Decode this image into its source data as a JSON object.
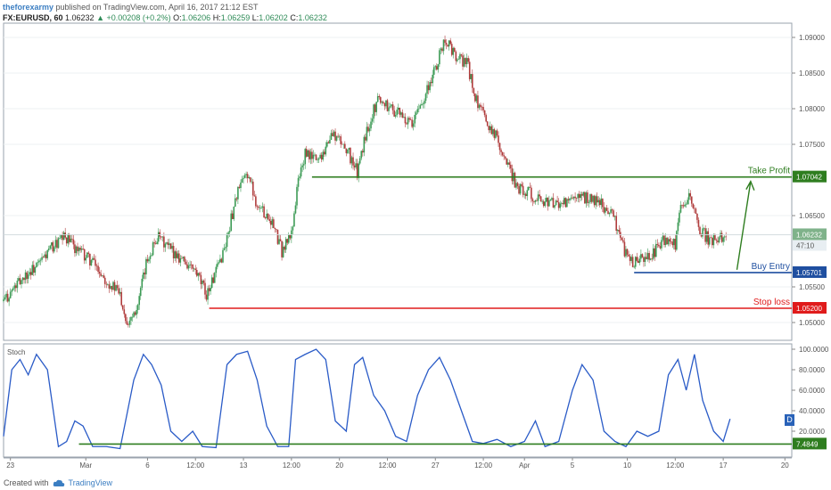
{
  "header": {
    "author": "theforexarmy",
    "published": "published on TradingView.com, April 16, 2017 21:12 EST",
    "symbol": "FX:EURUSD, 60",
    "last": "1.06232",
    "change": "+0.00208 (+0.2%)",
    "o_label": "O:",
    "o_value": "1.06206",
    "h_label": "H:",
    "h_value": "1.06259",
    "l_label": "L:",
    "l_value": "1.06202",
    "c_label": "C:",
    "c_value": "1.06232"
  },
  "footer": {
    "created_with": "Created with",
    "brand": "TradingView"
  },
  "colors": {
    "take_profit": "#2e7d1f",
    "buy_entry": "#1f4fa0",
    "stop_loss": "#e01b1b",
    "stoch_line": "#2a5bc7",
    "stoch_support": "#2e7d1f",
    "price_tag": "#7fb28a",
    "candle_up": "#3d9b56",
    "candle_down": "#b03d3d"
  },
  "chart_data": [
    {
      "type": "candlestick",
      "symbol": "FX:EURUSD",
      "interval": "60",
      "ylim": [
        1.0475,
        1.092
      ],
      "y_ticks": [
        "1.09000",
        "1.08500",
        "1.08000",
        "1.07500",
        "1.06500",
        "1.05500",
        "1.05000"
      ],
      "x_tick_labels": [
        "23",
        "Mar",
        "6",
        "12:00",
        "13",
        "12:00",
        "20",
        "12:00",
        "27",
        "12:00",
        "Apr",
        "5",
        "10",
        "12:00",
        "17",
        "20"
      ],
      "x_tick_positions": [
        0.5,
        6,
        10.5,
        14,
        17.5,
        21,
        24.5,
        28,
        31.5,
        35,
        38,
        41.5,
        45.5,
        49,
        52.5,
        57
      ],
      "xlim": [
        0,
        57.5
      ],
      "path": [
        [
          0,
          1.053
        ],
        [
          1.5,
          1.0565
        ],
        [
          2.5,
          1.058
        ],
        [
          3.5,
          1.0605
        ],
        [
          4.5,
          1.062
        ],
        [
          5.5,
          1.06
        ],
        [
          6.5,
          1.0585
        ],
        [
          7.5,
          1.056
        ],
        [
          8.5,
          1.054
        ],
        [
          9,
          1.05
        ],
        [
          9.8,
          1.0525
        ],
        [
          10.5,
          1.059
        ],
        [
          11.2,
          1.062
        ],
        [
          12,
          1.0605
        ],
        [
          13,
          1.059
        ],
        [
          14,
          1.057
        ],
        [
          14.8,
          1.054
        ],
        [
          15.5,
          1.057
        ],
        [
          16.2,
          1.061
        ],
        [
          17,
          1.068
        ],
        [
          17.8,
          1.071
        ],
        [
          18.5,
          1.0665
        ],
        [
          19.5,
          1.0645
        ],
        [
          20.3,
          1.06
        ],
        [
          21,
          1.0625
        ],
        [
          21.5,
          1.07
        ],
        [
          22,
          1.0735
        ],
        [
          23,
          1.073
        ],
        [
          24,
          1.0765
        ],
        [
          25,
          1.0745
        ],
        [
          25.8,
          1.071
        ],
        [
          26.5,
          1.077
        ],
        [
          27.3,
          1.0815
        ],
        [
          28,
          1.0805
        ],
        [
          29,
          1.079
        ],
        [
          29.8,
          1.0775
        ],
        [
          30.5,
          1.081
        ],
        [
          31.5,
          1.0855
        ],
        [
          32.2,
          1.09
        ],
        [
          33,
          1.087
        ],
        [
          33.8,
          1.0865
        ],
        [
          34.5,
          1.081
        ],
        [
          35,
          1.079
        ],
        [
          36,
          1.076
        ],
        [
          37,
          1.071
        ],
        [
          37.5,
          1.069
        ],
        [
          38.5,
          1.068
        ],
        [
          39.5,
          1.067
        ],
        [
          40.5,
          1.0665
        ],
        [
          41.5,
          1.067
        ],
        [
          42.5,
          1.0675
        ],
        [
          43.5,
          1.0668
        ],
        [
          44.5,
          1.065
        ],
        [
          45.3,
          1.06
        ],
        [
          46,
          1.0583
        ],
        [
          46.8,
          1.059
        ],
        [
          47.5,
          1.06
        ],
        [
          48.2,
          1.0615
        ],
        [
          49,
          1.0608
        ],
        [
          49.5,
          1.067
        ],
        [
          50,
          1.0675
        ],
        [
          50.8,
          1.063
        ],
        [
          51.5,
          1.0615
        ],
        [
          52.2,
          1.0618
        ],
        [
          52.8,
          1.0623
        ]
      ],
      "levels": [
        {
          "label": "Take Profit",
          "price": 1.07042,
          "tag": "1.07042",
          "x_start": 22.5
        },
        {
          "label": "Buy Entry",
          "price": 1.05701,
          "tag": "1.05701",
          "x_start": 46
        },
        {
          "label": "Stop loss",
          "price": 1.052,
          "tag": "1.05200",
          "x_start": 15
        }
      ],
      "current_price": {
        "value": 1.06232,
        "tag": "1.06232",
        "countdown": "47:10"
      },
      "arrow": {
        "from": [
          53.5,
          1.0574
        ],
        "to": [
          54.5,
          1.0698
        ]
      }
    },
    {
      "type": "line",
      "title": "Stoch",
      "ylim": [
        0,
        100
      ],
      "y_ticks": [
        "100.0000",
        "80.0000",
        "60.0000",
        "40.0000",
        "20.0000"
      ],
      "current_tag": "7.4849",
      "support_level": 7.4849,
      "points": [
        [
          0,
          15
        ],
        [
          0.6,
          80
        ],
        [
          1.2,
          90
        ],
        [
          1.8,
          75
        ],
        [
          2.4,
          95
        ],
        [
          3.2,
          80
        ],
        [
          4,
          5
        ],
        [
          4.6,
          10
        ],
        [
          5.2,
          30
        ],
        [
          5.8,
          25
        ],
        [
          6.5,
          5
        ],
        [
          7.5,
          5
        ],
        [
          8.5,
          3
        ],
        [
          9.5,
          70
        ],
        [
          10.2,
          95
        ],
        [
          10.8,
          85
        ],
        [
          11.5,
          65
        ],
        [
          12.2,
          20
        ],
        [
          13,
          10
        ],
        [
          13.8,
          20
        ],
        [
          14.5,
          5
        ],
        [
          15.5,
          4
        ],
        [
          16.3,
          85
        ],
        [
          17,
          95
        ],
        [
          17.8,
          98
        ],
        [
          18.5,
          70
        ],
        [
          19.2,
          25
        ],
        [
          20,
          5
        ],
        [
          20.8,
          5
        ],
        [
          21.3,
          90
        ],
        [
          22,
          95
        ],
        [
          22.8,
          100
        ],
        [
          23.5,
          90
        ],
        [
          24.2,
          30
        ],
        [
          25,
          20
        ],
        [
          25.6,
          85
        ],
        [
          26.2,
          92
        ],
        [
          27,
          55
        ],
        [
          27.8,
          40
        ],
        [
          28.6,
          15
        ],
        [
          29.4,
          10
        ],
        [
          30.2,
          55
        ],
        [
          31,
          80
        ],
        [
          31.8,
          92
        ],
        [
          32.6,
          70
        ],
        [
          33.4,
          40
        ],
        [
          34.2,
          10
        ],
        [
          35,
          8
        ],
        [
          36,
          12
        ],
        [
          37,
          5
        ],
        [
          38,
          10
        ],
        [
          38.8,
          30
        ],
        [
          39.5,
          5
        ],
        [
          40.5,
          10
        ],
        [
          41.5,
          60
        ],
        [
          42.2,
          85
        ],
        [
          43,
          70
        ],
        [
          43.8,
          20
        ],
        [
          44.6,
          10
        ],
        [
          45.4,
          5
        ],
        [
          46.2,
          20
        ],
        [
          47,
          15
        ],
        [
          47.8,
          20
        ],
        [
          48.5,
          75
        ],
        [
          49.2,
          90
        ],
        [
          49.8,
          60
        ],
        [
          50.4,
          95
        ],
        [
          51,
          50
        ],
        [
          51.8,
          20
        ],
        [
          52.5,
          10
        ],
        [
          53,
          32
        ]
      ]
    }
  ]
}
